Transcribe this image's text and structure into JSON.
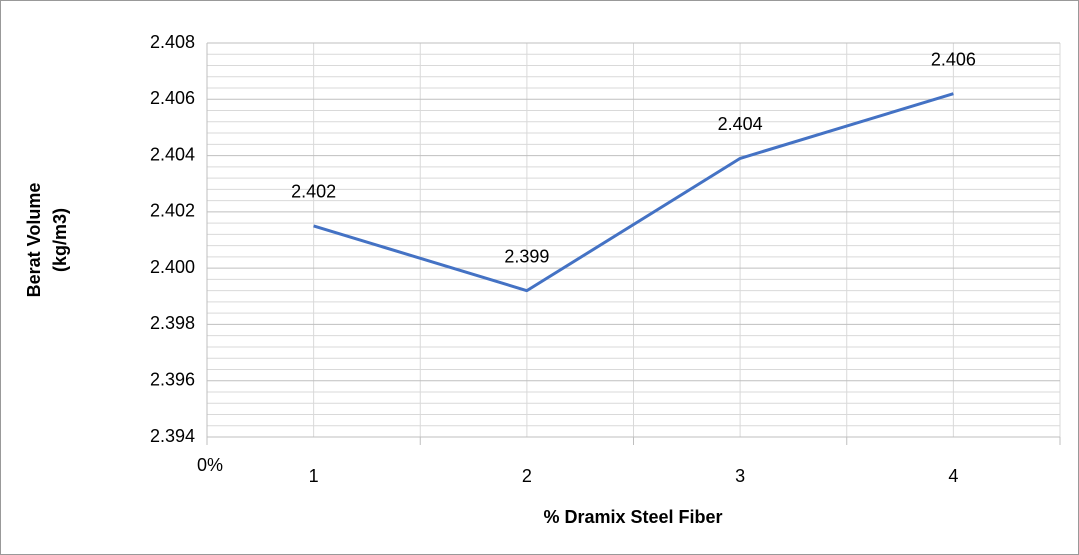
{
  "chart_data": {
    "type": "line",
    "ylabel": [
      "Berat Volume",
      "(kg/m3)"
    ],
    "xlabel": "% Dramix Steel Fiber",
    "x_origin_label": "0%",
    "categories": [
      "1",
      "2",
      "3",
      "4"
    ],
    "series": [
      {
        "name": "Berat Volume",
        "color": "#4472c4",
        "values": [
          2.4015,
          2.3992,
          2.4039,
          2.4062
        ],
        "value_labels": [
          "2.402",
          "2.399",
          "2.404",
          "2.406"
        ]
      }
    ],
    "ylim": [
      2.394,
      2.408
    ],
    "yticks": [
      2.394,
      2.396,
      2.398,
      {
        "value": 2.4,
        "label": "2.400"
      },
      2.402,
      2.404,
      2.406,
      2.408
    ],
    "grid": true,
    "minor_grid_divisions": 5,
    "legend": false
  }
}
